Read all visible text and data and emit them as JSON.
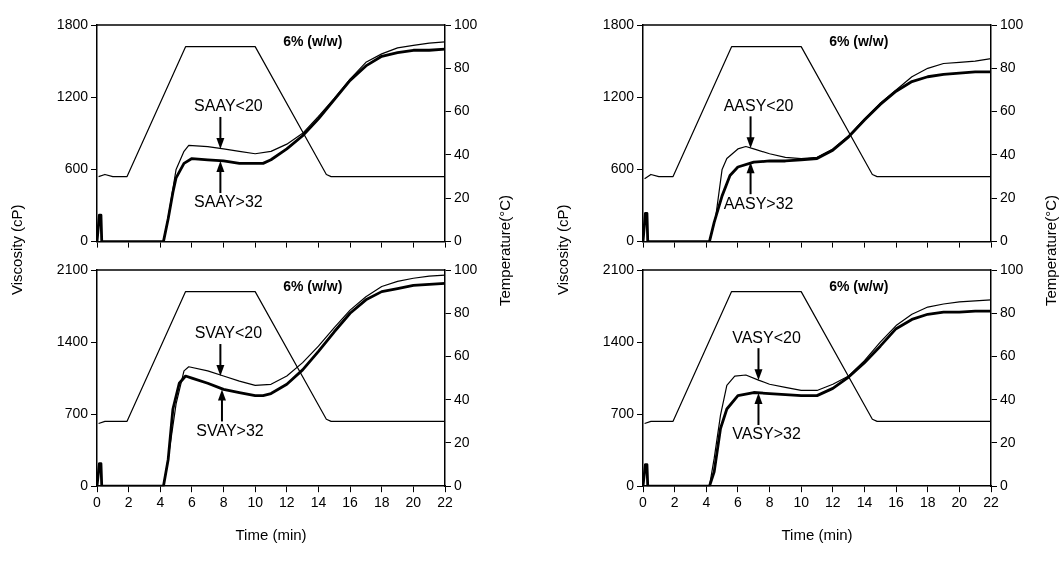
{
  "chart_data": [
    {
      "type": "line",
      "ylabel": "Viscosity (cP)",
      "y2label": "Temperature(°C)",
      "annotations": [
        "6% (w/w)",
        {
          "text": "SAAY<20",
          "x": 7.8,
          "y": 770
        },
        {
          "text": "SAAY>32",
          "x": 7.8,
          "y": 670
        }
      ],
      "xlim": [
        0,
        22
      ],
      "xticks": [
        0,
        2,
        4,
        6,
        8,
        10,
        12,
        14,
        16,
        18,
        20,
        22
      ],
      "ylim": [
        0,
        1800
      ],
      "yticks": [
        0,
        600,
        1200,
        1800
      ],
      "y2lim": [
        0,
        100
      ],
      "y2ticks": [
        0,
        20,
        40,
        60,
        80,
        100
      ],
      "tick_labels": "y",
      "grid": false,
      "legend": false,
      "marker": "none",
      "line_style": "solid",
      "series": [
        {
          "color": "#000000",
          "x": [
            0,
            4.2,
            4.5,
            5,
            5.5,
            5.8,
            7,
            8,
            9,
            10,
            11,
            12,
            13,
            14,
            15,
            16,
            17,
            18,
            19,
            20,
            21,
            22
          ],
          "values": [
            0,
            0,
            200,
            600,
            750,
            800,
            790,
            770,
            750,
            730,
            750,
            810,
            900,
            1040,
            1190,
            1350,
            1490,
            1560,
            1610,
            1630,
            1650,
            1660
          ]
        },
        {
          "color": "#000000",
          "x": [
            0,
            0.15,
            0.25,
            0.3,
            4.2,
            4.5,
            4.8,
            5,
            5.5,
            6,
            7,
            8,
            9,
            10,
            10.5,
            11,
            12,
            13,
            14,
            15,
            16,
            17,
            18,
            19,
            20,
            21,
            22
          ],
          "values": [
            0,
            220,
            220,
            0,
            0,
            190,
            410,
            530,
            650,
            690,
            680,
            670,
            650,
            650,
            650,
            680,
            770,
            880,
            1020,
            1180,
            1340,
            1460,
            1540,
            1570,
            1590,
            1590,
            1600
          ]
        },
        {
          "color": "#000000",
          "axis": "y2",
          "x": [
            0.1,
            0.5,
            1,
            1.9,
            5.6,
            10,
            14.5,
            14.8,
            22
          ],
          "values": [
            30,
            31,
            30,
            30,
            90,
            90,
            31,
            30,
            30
          ]
        }
      ]
    },
    {
      "type": "line",
      "ylabel": "Viscosity (cP)",
      "y2label": "Temperature(°C)",
      "annotations": [
        "6% (w/w)",
        {
          "text": "AASY<20",
          "x": 6.8,
          "y": 775
        },
        {
          "text": "AASY>32",
          "x": 6.8,
          "y": 660
        }
      ],
      "xlim": [
        0,
        22
      ],
      "xticks": [
        0,
        2,
        4,
        6,
        8,
        10,
        12,
        14,
        16,
        18,
        20,
        22
      ],
      "ylim": [
        0,
        1800
      ],
      "yticks": [
        0,
        600,
        1200,
        1800
      ],
      "y2lim": [
        0,
        100
      ],
      "y2ticks": [
        0,
        20,
        40,
        60,
        80,
        100
      ],
      "tick_labels": "y",
      "grid": false,
      "legend": false,
      "marker": "none",
      "line_style": "solid",
      "series": [
        {
          "color": "#000000",
          "x": [
            0,
            4.2,
            4.6,
            5,
            5.3,
            6,
            6.5,
            7,
            8,
            9,
            10,
            11,
            12,
            13,
            14,
            15,
            16,
            17,
            18,
            19,
            20,
            21,
            22
          ],
          "values": [
            0,
            0,
            210,
            600,
            690,
            770,
            790,
            770,
            730,
            700,
            690,
            700,
            770,
            880,
            1020,
            1150,
            1260,
            1370,
            1440,
            1480,
            1490,
            1500,
            1520
          ]
        },
        {
          "color": "#000000",
          "x": [
            0,
            0.15,
            0.25,
            0.3,
            4.2,
            4.5,
            5,
            5.5,
            6,
            7,
            8,
            9,
            10,
            11,
            12,
            13,
            14,
            15,
            16,
            17,
            18,
            19,
            20,
            21,
            22
          ],
          "values": [
            0,
            235,
            235,
            0,
            0,
            160,
            380,
            550,
            620,
            660,
            670,
            670,
            680,
            690,
            760,
            870,
            1010,
            1140,
            1250,
            1330,
            1370,
            1390,
            1400,
            1410,
            1410
          ]
        },
        {
          "color": "#000000",
          "axis": "y2",
          "x": [
            0.1,
            0.5,
            1,
            1.9,
            5.6,
            10,
            14.5,
            14.8,
            22
          ],
          "values": [
            29,
            31,
            30,
            30,
            90,
            90,
            31,
            30,
            30
          ]
        }
      ]
    },
    {
      "type": "line",
      "xlabel": "Time (min)",
      "annotations": [
        "6% (w/w)",
        {
          "text": "SVAY<20",
          "x": 7.8,
          "y": 1070
        },
        {
          "text": "SVAY>32",
          "x": 7.9,
          "y": 940
        }
      ],
      "xlim": [
        0,
        22
      ],
      "xticks": [
        0,
        2,
        4,
        6,
        8,
        10,
        12,
        14,
        16,
        18,
        20,
        22
      ],
      "ylim": [
        0,
        2100
      ],
      "yticks": [
        0,
        700,
        1400,
        2100
      ],
      "y2lim": [
        0,
        100
      ],
      "y2ticks": [
        0,
        20,
        40,
        60,
        80,
        100
      ],
      "grid": false,
      "legend": false,
      "marker": "none",
      "line_style": "solid",
      "series": [
        {
          "color": "#000000",
          "x": [
            0,
            4.2,
            4.5,
            5,
            5.5,
            5.8,
            7,
            8,
            9,
            10,
            11,
            12,
            13,
            14,
            15,
            16,
            17,
            18,
            19,
            20,
            21,
            22
          ],
          "values": [
            0,
            0,
            270,
            800,
            1120,
            1160,
            1120,
            1070,
            1020,
            980,
            990,
            1070,
            1200,
            1360,
            1540,
            1710,
            1840,
            1940,
            1990,
            2020,
            2040,
            2050
          ]
        },
        {
          "color": "#000000",
          "x": [
            0,
            0.15,
            0.25,
            0.3,
            4.2,
            4.5,
            4.8,
            5.2,
            5.6,
            6,
            7,
            8,
            9,
            10,
            10.5,
            11,
            12,
            13,
            14,
            15,
            16,
            17,
            18,
            19,
            20,
            21,
            22
          ],
          "values": [
            0,
            220,
            220,
            0,
            0,
            260,
            750,
            1000,
            1070,
            1050,
            1000,
            940,
            910,
            880,
            880,
            900,
            990,
            1130,
            1310,
            1500,
            1680,
            1810,
            1890,
            1920,
            1950,
            1960,
            1970
          ]
        },
        {
          "color": "#000000",
          "axis": "y2",
          "x": [
            0.1,
            0.5,
            1,
            1.9,
            5.6,
            10,
            14.5,
            14.8,
            22
          ],
          "values": [
            29,
            30,
            30,
            30,
            90,
            90,
            31,
            30,
            30
          ]
        }
      ]
    },
    {
      "type": "line",
      "xlabel": "Time (min)",
      "annotations": [
        "6% (w/w)",
        {
          "text": "VASY<20",
          "x": 7.3,
          "y": 1030
        },
        {
          "text": "VASY>32",
          "x": 7.3,
          "y": 905
        }
      ],
      "xlim": [
        0,
        22
      ],
      "xticks": [
        0,
        2,
        4,
        6,
        8,
        10,
        12,
        14,
        16,
        18,
        20,
        22
      ],
      "ylim": [
        0,
        2100
      ],
      "yticks": [
        0,
        700,
        1400,
        2100
      ],
      "y2lim": [
        0,
        100
      ],
      "y2ticks": [
        0,
        20,
        40,
        60,
        80,
        100
      ],
      "grid": false,
      "legend": false,
      "marker": "none",
      "line_style": "solid",
      "series": [
        {
          "color": "#000000",
          "x": [
            0,
            4.2,
            4.5,
            4.9,
            5.3,
            5.8,
            6.5,
            7.3,
            8,
            9,
            10,
            11,
            12,
            13,
            14,
            15,
            16,
            17,
            18,
            19,
            20,
            21,
            22
          ],
          "values": [
            0,
            0,
            270,
            690,
            980,
            1070,
            1080,
            1030,
            990,
            960,
            930,
            930,
            990,
            1070,
            1220,
            1400,
            1560,
            1670,
            1740,
            1770,
            1790,
            1800,
            1810
          ]
        },
        {
          "color": "#000000",
          "x": [
            0,
            0.15,
            0.25,
            0.3,
            4.2,
            4.5,
            4.9,
            5.3,
            6,
            7,
            8,
            9,
            10,
            11,
            12,
            13,
            14,
            15,
            16,
            17,
            18,
            19,
            20,
            21,
            22
          ],
          "values": [
            0,
            210,
            210,
            0,
            0,
            140,
            560,
            750,
            880,
            910,
            900,
            890,
            880,
            880,
            950,
            1060,
            1200,
            1360,
            1530,
            1620,
            1670,
            1690,
            1690,
            1700,
            1700
          ]
        },
        {
          "color": "#000000",
          "axis": "y2",
          "x": [
            0.1,
            0.5,
            1,
            1.9,
            5.6,
            10,
            14.5,
            14.8,
            22
          ],
          "values": [
            29,
            30,
            30,
            30,
            90,
            90,
            31,
            30,
            30
          ]
        }
      ]
    }
  ]
}
